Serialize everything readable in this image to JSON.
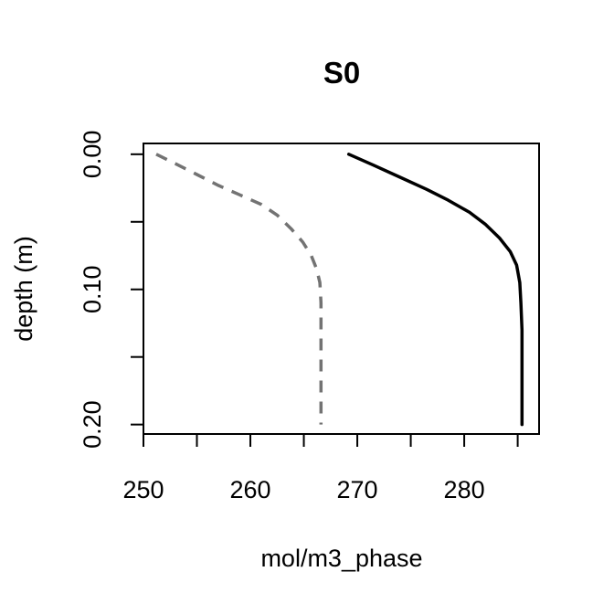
{
  "chart_data": {
    "type": "line",
    "title": "S0",
    "xlabel": "mol/m3_phase",
    "ylabel": "depth (m)",
    "xlim": [
      250,
      287
    ],
    "ylim": [
      0.207,
      -0.008
    ],
    "x_ticks": [
      250,
      255,
      260,
      265,
      270,
      275,
      280,
      285
    ],
    "x_tick_labels": [
      "250",
      "260",
      "270",
      "280"
    ],
    "x_tick_labels_at": [
      250,
      260,
      270,
      280
    ],
    "y_ticks": [
      0.0,
      0.05,
      0.1,
      0.15,
      0.2
    ],
    "y_tick_labels": [
      "0.00",
      "0.10",
      "0.20"
    ],
    "y_tick_labels_at": [
      0.0,
      0.1,
      0.2
    ],
    "grid": false,
    "legend": "none",
    "series": [
      {
        "style": "dashed",
        "color": "#737373",
        "points": [
          [
            251.2,
            0.0
          ],
          [
            253.0,
            0.007
          ],
          [
            255.0,
            0.015
          ],
          [
            257.0,
            0.023
          ],
          [
            259.0,
            0.03
          ],
          [
            261.0,
            0.037
          ],
          [
            262.5,
            0.045
          ],
          [
            263.8,
            0.055
          ],
          [
            264.9,
            0.065
          ],
          [
            265.7,
            0.075
          ],
          [
            266.2,
            0.085
          ],
          [
            266.5,
            0.095
          ],
          [
            266.6,
            0.11
          ],
          [
            266.6,
            0.13
          ],
          [
            266.6,
            0.16
          ],
          [
            266.6,
            0.2
          ]
        ]
      },
      {
        "style": "solid",
        "color": "#000000",
        "points": [
          [
            269.2,
            0.0
          ],
          [
            271.5,
            0.008
          ],
          [
            274.0,
            0.017
          ],
          [
            276.5,
            0.026
          ],
          [
            278.5,
            0.034
          ],
          [
            280.5,
            0.043
          ],
          [
            282.0,
            0.052
          ],
          [
            283.3,
            0.062
          ],
          [
            284.3,
            0.072
          ],
          [
            284.9,
            0.082
          ],
          [
            285.2,
            0.095
          ],
          [
            285.3,
            0.11
          ],
          [
            285.4,
            0.13
          ],
          [
            285.4,
            0.16
          ],
          [
            285.4,
            0.2
          ]
        ]
      }
    ]
  }
}
